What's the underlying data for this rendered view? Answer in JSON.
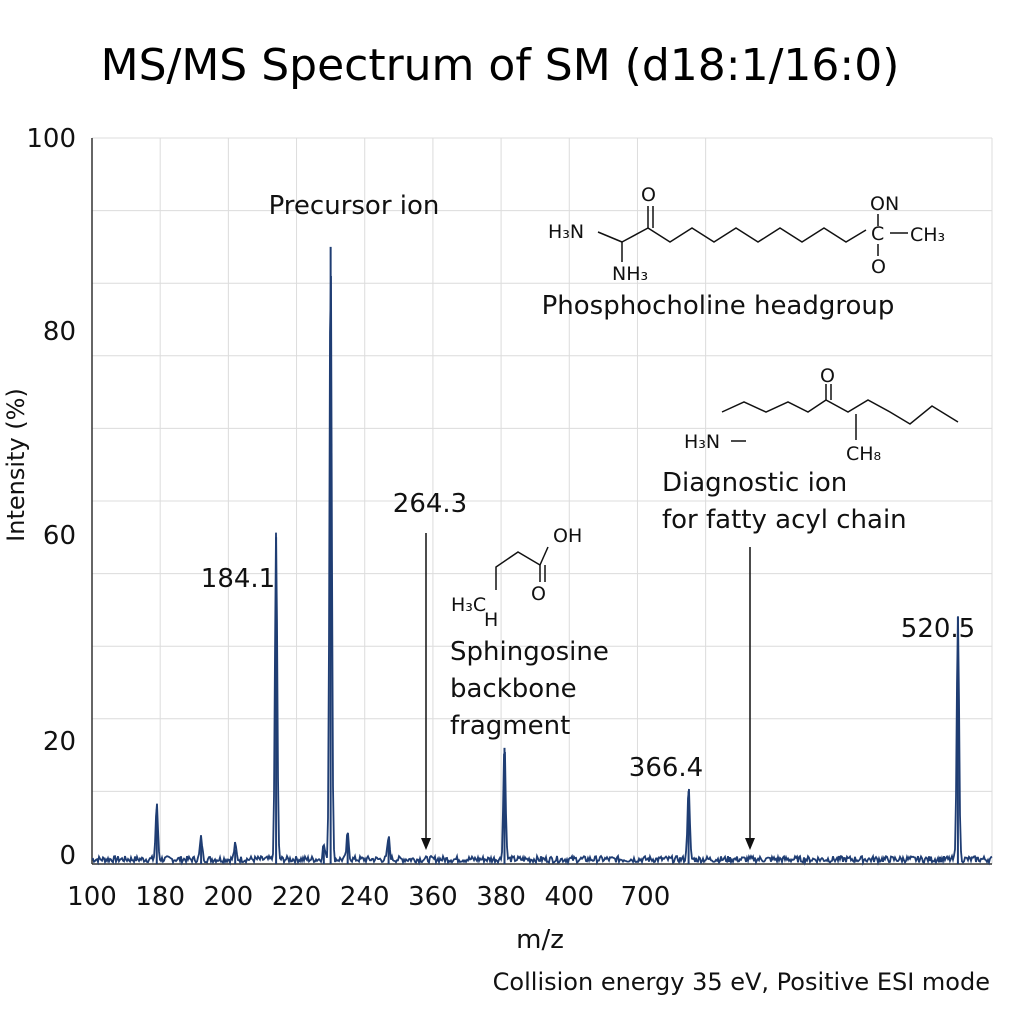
{
  "chart_data": {
    "type": "line",
    "title": "MS/MS Spectrum of SM (d18:1/16:0)",
    "xlabel": "m/z",
    "ylabel": "Intensity (%)",
    "x_tick_labels": [
      "100",
      "180",
      "200",
      "220",
      "240",
      "360",
      "380",
      "400",
      "700"
    ],
    "y_tick_labels": [
      "0",
      "20",
      "60",
      "80",
      "100"
    ],
    "ylim": [
      0,
      100
    ],
    "grid": true,
    "series_color": "#1f3d73",
    "peaks": [
      {
        "x_slot": 0.95,
        "y": 7.5
      },
      {
        "x_slot": 1.6,
        "y": 3.0
      },
      {
        "x_slot": 2.7,
        "y": 45
      },
      {
        "x_slot": 2.1,
        "y": 2.0
      },
      {
        "x_slot": 3.4,
        "y": 2.0
      },
      {
        "x_slot": 3.5,
        "y": 85
      },
      {
        "x_slot": 3.75,
        "y": 3.5
      },
      {
        "x_slot": 4.35,
        "y": 3.0
      },
      {
        "x_slot": 6.05,
        "y": 16
      },
      {
        "x_slot": 8.75,
        "y": 10
      },
      {
        "x_slot": 12.7,
        "y": 34
      }
    ],
    "x_slot_edges": [
      0,
      1,
      2,
      3,
      4,
      5,
      6,
      7,
      8,
      9,
      13.2
    ],
    "labels": [
      {
        "text": "Precursor ion",
        "role": "peak-caption"
      },
      {
        "text": "184.1",
        "role": "peak-value"
      },
      {
        "text": "264.3",
        "role": "peak-value"
      },
      {
        "text": "366.4",
        "role": "peak-value"
      },
      {
        "text": "520.5",
        "role": "peak-value"
      }
    ],
    "annotations": [
      {
        "text": "Phosphocholine headgroup"
      },
      {
        "line1": "Sphingosine",
        "line2": "backbone",
        "line3": "fragment"
      },
      {
        "line1": "Diagnostic ion",
        "line2": "for fatty acyl chain"
      }
    ]
  },
  "structure_labels": {
    "phosphocholine": {
      "h3n": "H₃N",
      "nh3": "NH₃",
      "o1": "O",
      "on": "ON",
      "c": "C",
      "ch3": "CH₃",
      "o2": "O"
    },
    "sphingosine": {
      "oh": "OH",
      "o": "O",
      "h3c": "H₃C",
      "h": "H"
    },
    "fatty_acyl": {
      "h3n": "H₃N",
      "o": "O",
      "ch8": "CH₈"
    }
  },
  "footnote": "Collision energy 35 eV, Positive ESI mode"
}
